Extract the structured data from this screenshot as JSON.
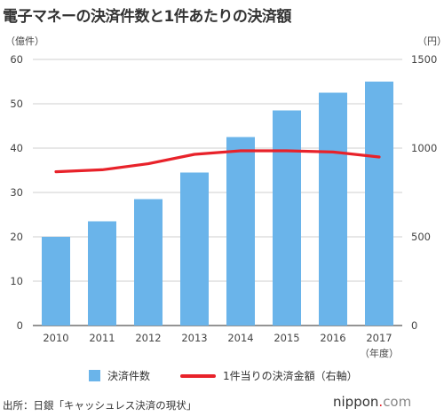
{
  "title": "電子マネーの決済件数と1件あたりの決済額",
  "left_unit": "（億件）",
  "right_unit": "（円）",
  "year_unit": "（年度）",
  "source": "出所：日銀「キャッシュレス決済の現状」",
  "brand": {
    "name": "nippon",
    "dot": ".",
    "tld": "com"
  },
  "colors": {
    "bar": "#6ab4ea",
    "line": "#e8222a",
    "grid": "#cfcfcf",
    "axis": "#555555"
  },
  "chart_data": {
    "type": "bar+line",
    "categories": [
      "2010",
      "2011",
      "2012",
      "2013",
      "2014",
      "2015",
      "2016",
      "2017"
    ],
    "series": [
      {
        "name": "決済件数",
        "type": "bar",
        "axis": "left",
        "values": [
          20.0,
          23.5,
          28.5,
          34.5,
          42.5,
          48.5,
          52.5,
          55.0
        ]
      },
      {
        "name": "1件当りの決済金額（右軸）",
        "type": "line",
        "axis": "right",
        "values": [
          867,
          878,
          912,
          965,
          985,
          985,
          978,
          950
        ]
      }
    ],
    "y_left": {
      "min": 0,
      "max": 60,
      "ticks": [
        0,
        10,
        20,
        30,
        40,
        50,
        60
      ]
    },
    "y_right": {
      "min": 0,
      "max": 1500,
      "ticks": [
        0,
        500,
        1000,
        1500
      ]
    },
    "grid": true,
    "legend": "bottom"
  }
}
